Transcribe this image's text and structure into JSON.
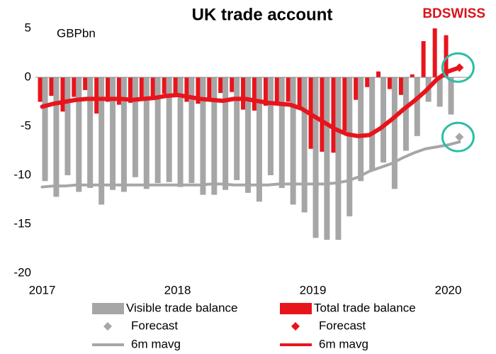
{
  "chart_data": {
    "type": "bar_line",
    "title": "UK trade account",
    "brand": "BDSWISS",
    "y_unit_label": "GBPbn",
    "x": [
      2017.0,
      2017.083,
      2017.167,
      2017.25,
      2017.333,
      2017.417,
      2017.5,
      2017.583,
      2017.667,
      2017.75,
      2017.833,
      2017.917,
      2018.0,
      2018.083,
      2018.167,
      2018.25,
      2018.333,
      2018.417,
      2018.5,
      2018.583,
      2018.667,
      2018.75,
      2018.833,
      2018.917,
      2019.0,
      2019.083,
      2019.167,
      2019.25,
      2019.333,
      2019.417,
      2019.5,
      2019.583,
      2019.667,
      2019.75,
      2019.833,
      2019.917,
      2020.0,
      2020.083
    ],
    "xlim": [
      2016.95,
      2020.17
    ],
    "xticks": [
      2017,
      2018,
      2019,
      2020
    ],
    "ylim": [
      -20,
      5
    ],
    "yticks": [
      -20,
      -15,
      -10,
      -5,
      0,
      5
    ],
    "series": [
      {
        "name": "Visible trade balance",
        "kind": "bar",
        "color": "#a6a6a6",
        "values": [
          -10.6,
          -12.2,
          -10.0,
          -11.7,
          -11.3,
          -13.0,
          -11.5,
          -11.7,
          -10.2,
          -11.4,
          -10.8,
          -10.7,
          -11.2,
          -10.8,
          -12.0,
          -12.0,
          -11.5,
          -10.5,
          -11.8,
          -12.7,
          -10.0,
          -11.3,
          -13.0,
          -13.8,
          -16.4,
          -16.6,
          -16.6,
          -14.2,
          -10.6,
          -9.5,
          -8.7,
          -11.4,
          -7.5,
          -6.0,
          -2.5,
          -3.0,
          -3.8,
          null
        ]
      },
      {
        "name": "Total trade balance",
        "kind": "bar",
        "color": "#e8141c",
        "values": [
          -2.5,
          -1.9,
          -3.5,
          -2.0,
          -1.3,
          -3.7,
          -2.5,
          -2.8,
          -2.6,
          -2.3,
          -2.1,
          -1.7,
          -1.7,
          -2.5,
          -2.7,
          -2.1,
          -1.6,
          -1.5,
          -3.3,
          -3.4,
          -2.9,
          -2.6,
          -2.5,
          -3.0,
          -7.3,
          -7.6,
          -7.7,
          -5.5,
          -2.3,
          -1.0,
          0.6,
          -1.2,
          -1.8,
          0.3,
          3.7,
          5.0,
          4.3,
          null
        ]
      },
      {
        "name": "Forecast",
        "kind": "marker",
        "color": "#a6a6a6",
        "values": [
          null,
          null,
          null,
          null,
          null,
          null,
          null,
          null,
          null,
          null,
          null,
          null,
          null,
          null,
          null,
          null,
          null,
          null,
          null,
          null,
          null,
          null,
          null,
          null,
          null,
          null,
          null,
          null,
          null,
          null,
          null,
          null,
          null,
          null,
          null,
          null,
          null,
          -6.1
        ]
      },
      {
        "name": "Forecast",
        "kind": "marker",
        "color": "#e8141c",
        "values": [
          null,
          null,
          null,
          null,
          null,
          null,
          null,
          null,
          null,
          null,
          null,
          null,
          null,
          null,
          null,
          null,
          null,
          null,
          null,
          null,
          null,
          null,
          null,
          null,
          null,
          null,
          null,
          null,
          null,
          null,
          null,
          null,
          null,
          null,
          null,
          null,
          null,
          1.0
        ]
      },
      {
        "name": "6m mavg",
        "kind": "line",
        "color": "#a6a6a6",
        "values": [
          -11.2,
          -11.1,
          -11.1,
          -11.0,
          -11.0,
          -11.0,
          -11.0,
          -11.0,
          -11.0,
          -11.0,
          -11.0,
          -11.0,
          -11.0,
          -11.0,
          -11.0,
          -10.9,
          -10.9,
          -11.0,
          -11.0,
          -11.0,
          -11.0,
          -10.9,
          -10.9,
          -10.9,
          -10.9,
          -10.9,
          -10.8,
          -10.6,
          -10.2,
          -9.6,
          -9.2,
          -8.8,
          -8.2,
          -7.7,
          -7.3,
          -7.1,
          -6.9,
          -6.6
        ]
      },
      {
        "name": "6m mavg",
        "kind": "line",
        "color": "#e8141c",
        "values": [
          -3.0,
          -2.7,
          -2.5,
          -2.3,
          -2.2,
          -2.2,
          -2.2,
          -2.2,
          -2.3,
          -2.2,
          -2.1,
          -1.9,
          -1.8,
          -2.0,
          -2.2,
          -2.3,
          -2.4,
          -2.2,
          -2.2,
          -2.4,
          -2.6,
          -2.7,
          -2.8,
          -3.2,
          -3.9,
          -4.6,
          -5.3,
          -5.8,
          -6.0,
          -5.9,
          -5.2,
          -4.3,
          -3.3,
          -2.4,
          -1.4,
          -0.2,
          0.6,
          1.0
        ]
      }
    ],
    "annotation_color": "#2bbfa4"
  }
}
